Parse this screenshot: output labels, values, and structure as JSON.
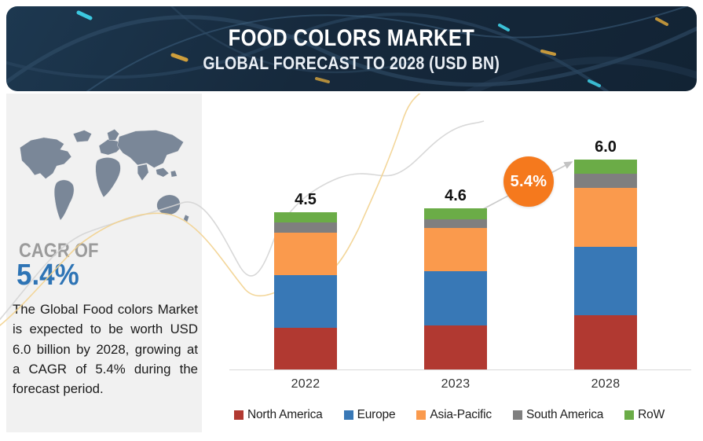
{
  "header": {
    "title": "FOOD COLORS MARKET",
    "subtitle": "GLOBAL FORECAST TO 2028 (USD BN)"
  },
  "sidebar": {
    "cagr_label": "CAGR OF",
    "cagr_value": "5.4%",
    "description": "The Global Food colors Market is expected to be worth USD 6.0 billion by 2028, growing at a CAGR of 5.4% during the forecast period."
  },
  "badge": {
    "label": "5.4%",
    "color": "#f5791d"
  },
  "colors": {
    "banner_bg": "#16293c",
    "panel_bg": "#f1f1f1",
    "map_fill": "#7a8798",
    "cagr_blue": "#2e74b5",
    "axis": "#d9d9d9"
  },
  "chart_data": {
    "type": "bar",
    "stacked": true,
    "title": "FOOD COLORS MARKET",
    "subtitle": "GLOBAL FORECAST TO 2028 (USD BN)",
    "unit": "USD BN",
    "categories": [
      "2022",
      "2023",
      "2028"
    ],
    "totals": [
      4.5,
      4.6,
      6.0
    ],
    "series": [
      {
        "name": "North America",
        "color": "#b13931",
        "values": [
          1.2,
          1.25,
          1.55
        ]
      },
      {
        "name": "Europe",
        "color": "#3878b6",
        "values": [
          1.5,
          1.55,
          1.95
        ]
      },
      {
        "name": "Asia-Pacific",
        "color": "#fa9a4d",
        "values": [
          1.2,
          1.25,
          1.7
        ]
      },
      {
        "name": "South America",
        "color": "#7f7f7f",
        "values": [
          0.3,
          0.25,
          0.4
        ]
      },
      {
        "name": "RoW",
        "color": "#6bac47",
        "values": [
          0.3,
          0.3,
          0.4
        ]
      }
    ],
    "annotation": {
      "text": "5.4%",
      "meaning": "CAGR 2023-2028"
    },
    "legend_position": "bottom",
    "grid": false,
    "ylim": [
      0,
      6.5
    ]
  }
}
